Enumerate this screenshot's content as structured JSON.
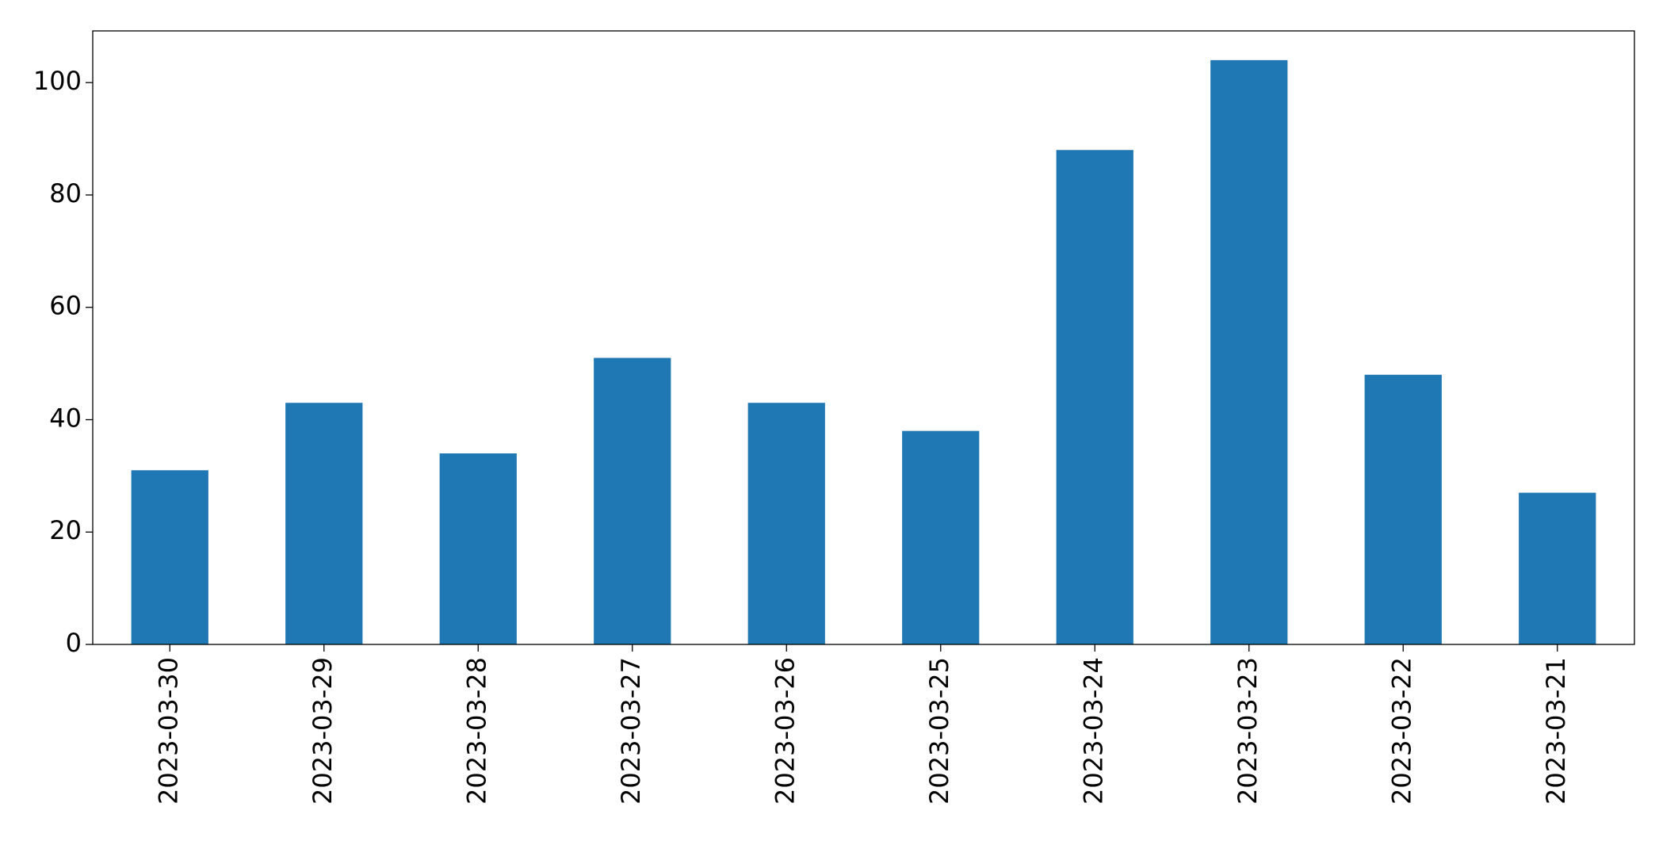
{
  "chart_data": {
    "type": "bar",
    "categories": [
      "2023-03-30",
      "2023-03-29",
      "2023-03-28",
      "2023-03-27",
      "2023-03-26",
      "2023-03-25",
      "2023-03-24",
      "2023-03-23",
      "2023-03-22",
      "2023-03-21"
    ],
    "values": [
      31,
      43,
      34,
      51,
      43,
      38,
      88,
      104,
      48,
      27
    ],
    "color": "#1f77b4",
    "ylim": [
      0,
      109.2
    ],
    "yticks": [
      0,
      20,
      40,
      60,
      80,
      100
    ],
    "grid": false
  }
}
